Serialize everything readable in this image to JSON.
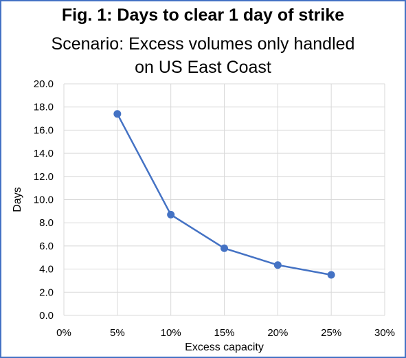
{
  "chart_data": {
    "type": "line",
    "title": "Fig. 1: Days to clear 1 day of strike",
    "subtitle_line1": "Scenario: Excess volumes only handled",
    "subtitle_line2": "on US East Coast",
    "xlabel": "Excess capacity",
    "ylabel": "Days",
    "x": [
      0.05,
      0.1,
      0.15,
      0.2,
      0.25
    ],
    "xlim": [
      0,
      0.3
    ],
    "x_ticks": [
      "0%",
      "5%",
      "10%",
      "15%",
      "20%",
      "25%",
      "30%"
    ],
    "ylim": [
      0,
      20
    ],
    "y_ticks": [
      "0.0",
      "2.0",
      "4.0",
      "6.0",
      "8.0",
      "10.0",
      "12.0",
      "14.0",
      "16.0",
      "18.0",
      "20.0"
    ],
    "grid": true,
    "series": [
      {
        "values": [
          17.4,
          8.7,
          5.8,
          4.35,
          3.5
        ],
        "color": "#4472c4"
      }
    ]
  }
}
